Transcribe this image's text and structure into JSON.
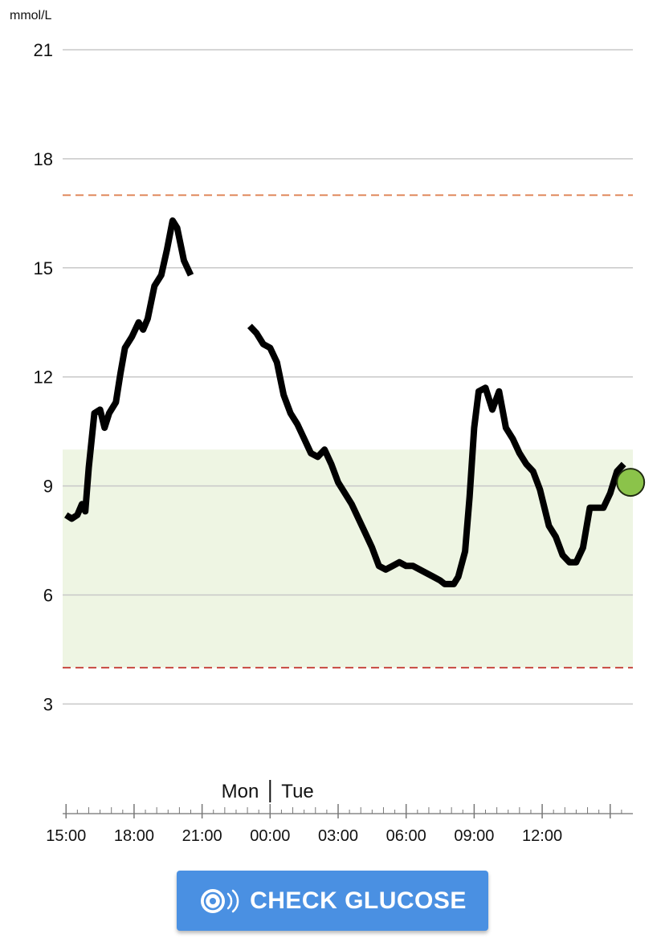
{
  "chart_data": {
    "type": "line",
    "ylabel": "mmol/L",
    "ylim": [
      0,
      21
    ],
    "yticks": [
      3,
      6,
      9,
      12,
      15,
      18,
      21
    ],
    "x_hours_labels": [
      {
        "h": 15,
        "label": "15:00"
      },
      {
        "h": 18,
        "label": "18:00"
      },
      {
        "h": 21,
        "label": "21:00"
      },
      {
        "h": 24,
        "label": "00:00"
      },
      {
        "h": 27,
        "label": "03:00"
      },
      {
        "h": 30,
        "label": "06:00"
      },
      {
        "h": 33,
        "label": "09:00"
      },
      {
        "h": 36,
        "label": "12:00"
      }
    ],
    "day_labels": {
      "left": "Mon",
      "right": "Tue",
      "boundary_hour": 24
    },
    "target_range": [
      4,
      10
    ],
    "high_threshold": 17,
    "low_threshold": 4,
    "colors": {
      "line": "#000000",
      "target_band": "#eef5e3",
      "high_line": "#e08a5e",
      "low_line": "#c8463f",
      "grid": "#c8c8c8",
      "current_point": "#8bc34a"
    },
    "series": [
      {
        "segment": 1,
        "x": [
          15.0,
          15.25,
          15.5,
          15.7,
          15.85,
          16.0,
          16.25,
          16.5,
          16.7,
          16.9,
          17.2,
          17.4,
          17.6,
          17.9,
          18.2,
          18.4,
          18.6,
          18.9,
          19.2,
          19.45,
          19.7,
          19.9,
          20.2,
          20.5
        ],
        "y": [
          8.2,
          8.1,
          8.2,
          8.5,
          8.3,
          9.5,
          11.0,
          11.1,
          10.6,
          11.0,
          11.3,
          12.1,
          12.8,
          13.1,
          13.5,
          13.3,
          13.6,
          14.5,
          14.8,
          15.5,
          16.3,
          16.1,
          15.2,
          14.8
        ]
      },
      {
        "segment": 2,
        "x": [
          23.1,
          23.4,
          23.7,
          24.0,
          24.3,
          24.6,
          24.9,
          25.2,
          25.5,
          25.8,
          26.1,
          26.4,
          26.7,
          27.0,
          27.3,
          27.6,
          27.9,
          28.2,
          28.5,
          28.8,
          29.1,
          29.4,
          29.7,
          30.0,
          30.3,
          30.6,
          30.9,
          31.2,
          31.5,
          31.7,
          31.9,
          32.1,
          32.3,
          32.6,
          32.8,
          33.0,
          33.2,
          33.5,
          33.8,
          34.1,
          34.4,
          34.7,
          35.0,
          35.3,
          35.6,
          35.9,
          36.1,
          36.3,
          36.6,
          36.9,
          37.2,
          37.5,
          37.8,
          38.1,
          38.4,
          38.7,
          39.0,
          39.3,
          39.6
        ],
        "y": [
          13.4,
          13.2,
          12.9,
          12.8,
          12.4,
          11.5,
          11.0,
          10.7,
          10.3,
          9.9,
          9.8,
          10.0,
          9.6,
          9.1,
          8.8,
          8.5,
          8.1,
          7.7,
          7.3,
          6.8,
          6.7,
          6.8,
          6.9,
          6.8,
          6.8,
          6.7,
          6.6,
          6.5,
          6.4,
          6.3,
          6.3,
          6.3,
          6.5,
          7.2,
          8.7,
          10.6,
          11.6,
          11.7,
          11.1,
          11.6,
          10.6,
          10.3,
          9.9,
          9.6,
          9.4,
          8.9,
          8.4,
          7.9,
          7.6,
          7.1,
          6.9,
          6.9,
          7.3,
          8.4,
          8.4,
          8.4,
          8.8,
          9.4,
          9.6
        ]
      }
    ],
    "current": {
      "x": 39.9,
      "y": 9.1
    }
  },
  "button": {
    "label": "CHECK GLUCOSE",
    "icon": "sensor-scan-icon"
  }
}
